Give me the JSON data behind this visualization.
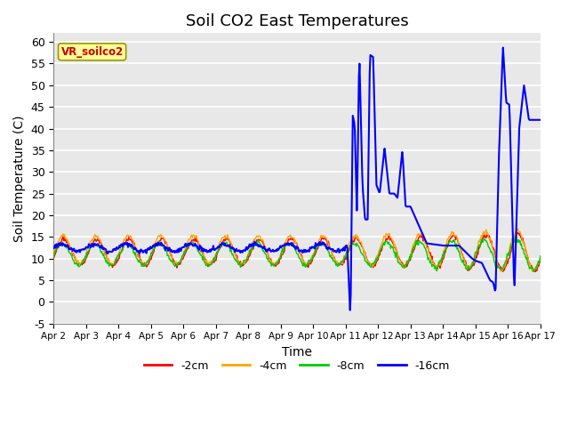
{
  "title": "Soil CO2 East Temperatures",
  "xlabel": "Time",
  "ylabel": "Soil Temperature (C)",
  "ylim": [
    -5,
    62
  ],
  "xlim": [
    0,
    15
  ],
  "xtick_labels": [
    "Apr 2",
    "Apr 3",
    "Apr 4",
    "Apr 5",
    "Apr 6",
    "Apr 7",
    "Apr 8",
    "Apr 9",
    "Apr 10",
    "Apr 11",
    "Apr 12",
    "Apr 13",
    "Apr 14",
    "Apr 15",
    "Apr 16",
    "Apr 17"
  ],
  "ytick_vals": [
    -5,
    0,
    5,
    10,
    15,
    20,
    25,
    30,
    35,
    40,
    45,
    50,
    55,
    60
  ],
  "colors": {
    "2cm": "#ff0000",
    "4cm": "#ffa500",
    "8cm": "#00cc00",
    "16cm": "#0000ff"
  },
  "legend_labels": [
    "-2cm",
    "-4cm",
    "-8cm",
    "-16cm"
  ],
  "annotation_text": "VR_soilco2",
  "annotation_box_color": "#ffff99",
  "annotation_text_color": "#cc0000",
  "background_color": "#e8e8e8",
  "title_fontsize": 13,
  "label_fontsize": 10
}
